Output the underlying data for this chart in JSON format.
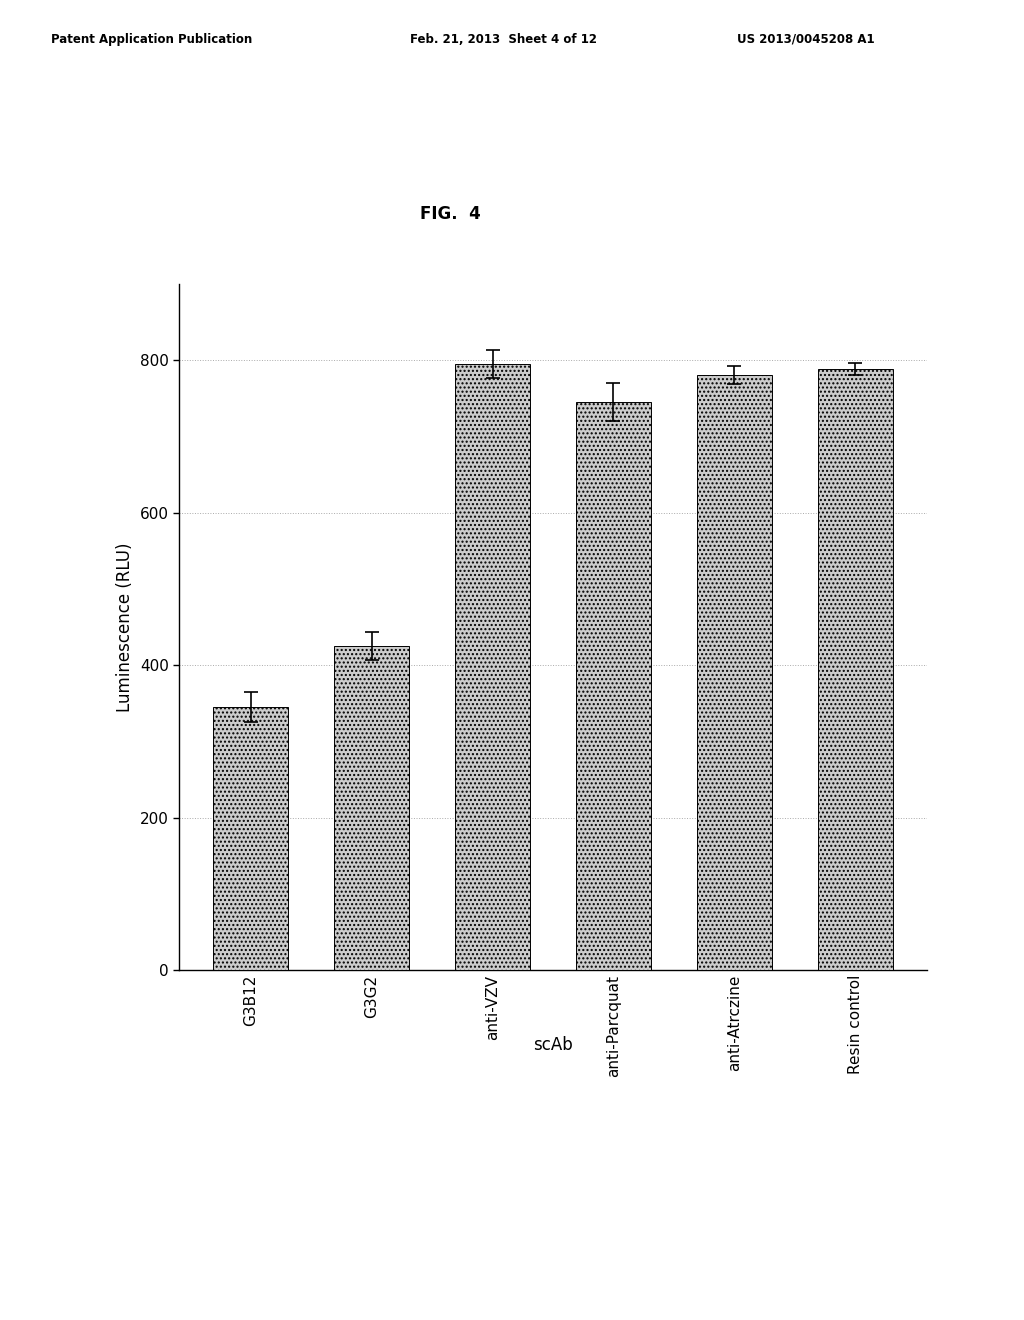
{
  "categories": [
    "G3B12",
    "G3G2",
    "anti-VZV",
    "anti-Parcquat",
    "anti-Atrczine",
    "Resin control"
  ],
  "values": [
    345,
    425,
    795,
    745,
    780,
    788
  ],
  "errors": [
    20,
    18,
    18,
    25,
    12,
    8
  ],
  "bar_color": "#cccccc",
  "bar_hatch": "....",
  "bar_edgecolor": "#000000",
  "ylabel": "Luminescence (RLU)",
  "xlabel": "scAb",
  "title": "FIG.  4",
  "ylim": [
    0,
    900
  ],
  "yticks": [
    0,
    200,
    400,
    600,
    800
  ],
  "figure_width": 10.24,
  "figure_height": 13.2,
  "bg_color": "#ffffff",
  "header_left": "Patent Application Publication",
  "header_mid": "Feb. 21, 2013  Sheet 4 of 12",
  "header_right": "US 2013/0045208 A1"
}
